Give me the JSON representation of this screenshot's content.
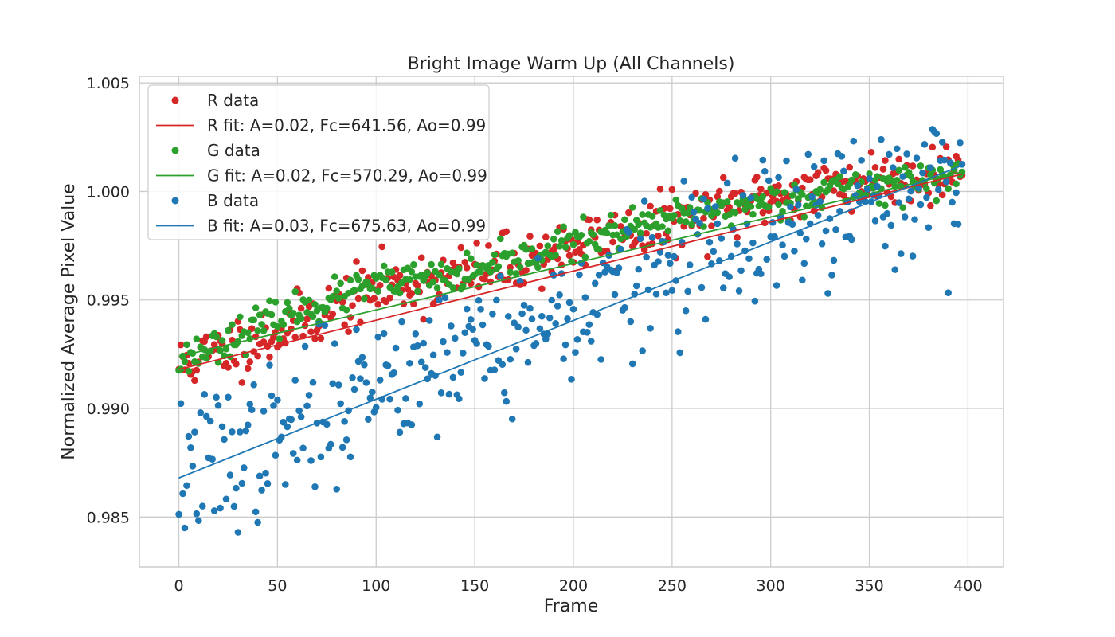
{
  "chart_data": {
    "type": "scatter",
    "title": "Bright Image Warm Up (All Channels)",
    "xlabel": "Frame",
    "ylabel": "Normalized Average Pixel Value",
    "xlim": [
      -20,
      418
    ],
    "ylim": [
      0.9827,
      1.0053
    ],
    "xticks": [
      0,
      50,
      100,
      150,
      200,
      250,
      300,
      350,
      400
    ],
    "yticks": [
      0.985,
      0.99,
      0.995,
      1.0,
      1.005
    ],
    "xtick_labels": [
      "0",
      "50",
      "100",
      "150",
      "200",
      "250",
      "300",
      "350",
      "400"
    ],
    "ytick_labels": [
      "0.985",
      "0.990",
      "0.995",
      "1.000",
      "1.005"
    ],
    "grid": true,
    "legend_position": "top-left",
    "frames": {
      "start": 0,
      "end": 397
    },
    "colors": {
      "R": "#d62728",
      "G": "#2ca02c",
      "B": "#1f77b4"
    },
    "series": [
      {
        "channel": "R",
        "legend_data": "R data",
        "legend_fit": "R fit: A=0.02, Fc=641.56, Ao=0.99",
        "fit_line": [
          [
            0,
            0.9918
          ],
          [
            397,
            1.0008
          ]
        ],
        "trend": [
          [
            0,
            0.992
          ],
          [
            50,
            0.9935
          ],
          [
            100,
            0.9955
          ],
          [
            150,
            0.9962
          ],
          [
            200,
            0.9975
          ],
          [
            250,
            0.9985
          ],
          [
            300,
            0.9998
          ],
          [
            350,
            1.0005
          ],
          [
            397,
            1.001
          ]
        ],
        "noise": 0.0007,
        "seed": 11
      },
      {
        "channel": "G",
        "legend_data": "G data",
        "legend_fit": "G fit: A=0.02, Fc=570.29, Ao=0.99",
        "fit_line": [
          [
            0,
            0.9924
          ],
          [
            397,
            1.0009
          ]
        ],
        "trend": [
          [
            0,
            0.9922
          ],
          [
            50,
            0.9942
          ],
          [
            100,
            0.9957
          ],
          [
            150,
            0.9962
          ],
          [
            200,
            0.9977
          ],
          [
            250,
            0.9987
          ],
          [
            300,
            0.9996
          ],
          [
            350,
            1.0003
          ],
          [
            397,
            1.0007
          ]
        ],
        "noise": 0.0004,
        "seed": 23
      },
      {
        "channel": "B",
        "legend_data": "B data",
        "legend_fit": "B fit: A=0.03, Fc=675.63, Ao=0.99",
        "fit_line": [
          [
            0,
            0.9868
          ],
          [
            397,
            1.0012
          ]
        ],
        "trend": [
          [
            0,
            0.987
          ],
          [
            50,
            0.9885
          ],
          [
            100,
            0.9915
          ],
          [
            150,
            0.993
          ],
          [
            200,
            0.9945
          ],
          [
            250,
            0.9965
          ],
          [
            300,
            0.998
          ],
          [
            350,
            0.9995
          ],
          [
            397,
            1.0008
          ]
        ],
        "noise": 0.0017,
        "seed": 37
      }
    ]
  }
}
